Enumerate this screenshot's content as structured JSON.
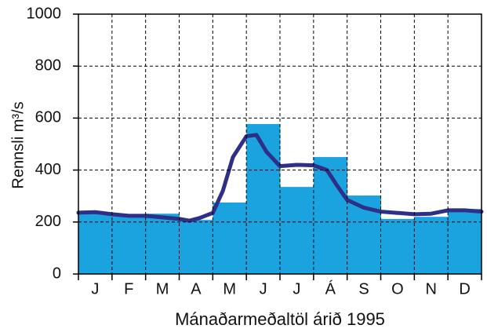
{
  "chart_data": {
    "type": "bar",
    "xlabel": "Mánaðarmeðaltöl árið 1995",
    "ylabel": "Rennsli  m³/s",
    "categories": [
      "J",
      "F",
      "M",
      "A",
      "M",
      "J",
      "J",
      "Á",
      "S",
      "O",
      "N",
      "D"
    ],
    "values": [
      235,
      227,
      232,
      208,
      275,
      577,
      335,
      450,
      302,
      212,
      220,
      250
    ],
    "color": "#1ba3e0",
    "ylim": [
      0,
      1000
    ],
    "yticks": [
      0,
      200,
      400,
      600,
      800,
      1000
    ],
    "grid": true,
    "overlay": {
      "type": "line",
      "color": "#2e2f86",
      "xlim": [
        0,
        12
      ],
      "x": [
        0,
        0.5,
        1,
        1.5,
        2,
        2.5,
        3,
        3.3,
        3.6,
        4,
        4.3,
        4.6,
        5,
        5.3,
        5.6,
        6,
        6.5,
        7,
        7.4,
        7.7,
        8,
        8.5,
        9,
        9.5,
        10,
        10.5,
        11,
        11.5,
        12
      ],
      "values": [
        236,
        238,
        230,
        224,
        224,
        218,
        212,
        205,
        215,
        235,
        320,
        450,
        530,
        535,
        470,
        415,
        420,
        418,
        400,
        340,
        285,
        255,
        240,
        235,
        230,
        232,
        245,
        245,
        240
      ]
    }
  }
}
